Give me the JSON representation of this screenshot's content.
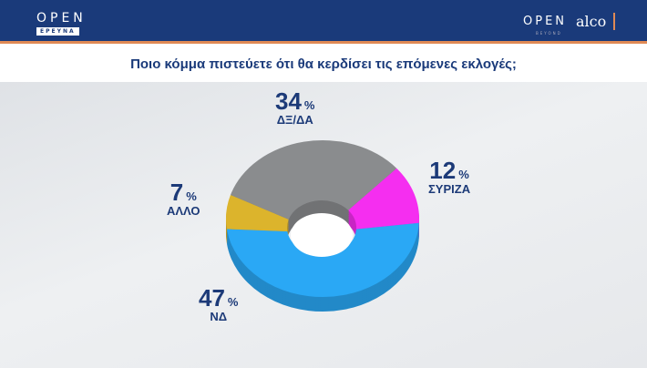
{
  "header": {
    "logo_left": "OPEN",
    "logo_left_sub": "ΕΡΕΥΝΑ",
    "logo_right": "OPEN",
    "logo_right_sub": "BEYOND",
    "logo_alco": "alco"
  },
  "chart_data": {
    "type": "pie",
    "title": "Ποιο κόμμα πιστεύετε ότι  θα κερδίσει τις επόμενες εκλογές;",
    "unit": "%",
    "slices": [
      {
        "name": "ΣΥΡΙΖΑ",
        "value": 12,
        "color": "#f52ef0"
      },
      {
        "name": "ΝΔ",
        "value": 47,
        "color": "#2aa8f5"
      },
      {
        "name": "ΑΛΛΟ",
        "value": 7,
        "color": "#dcb42c"
      },
      {
        "name": "ΔΞ/ΔΑ",
        "value": 34,
        "color": "#8a8c8e"
      }
    ]
  }
}
